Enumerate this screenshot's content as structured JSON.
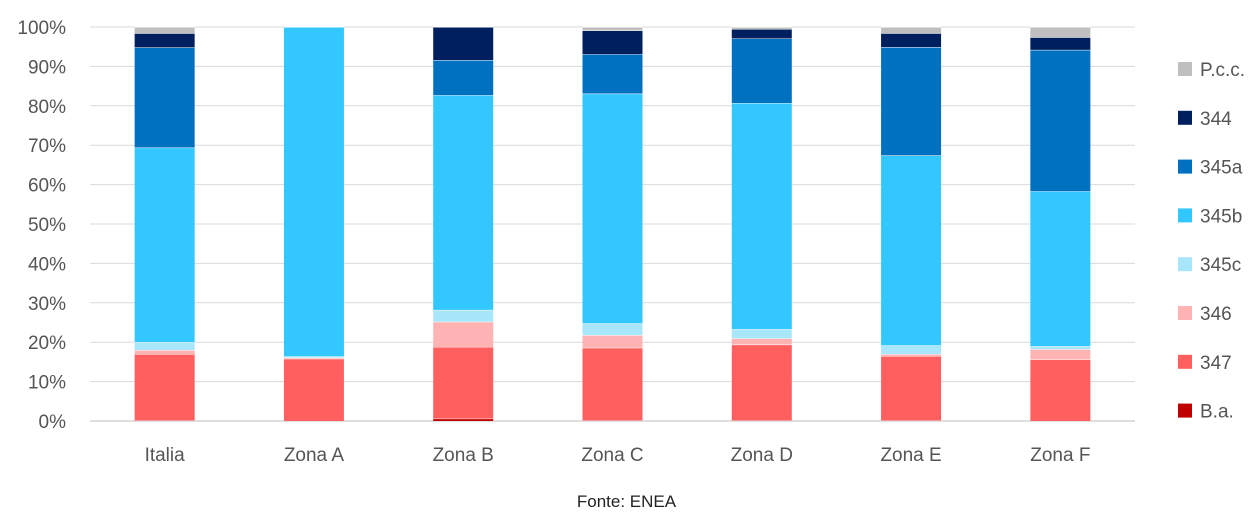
{
  "chart_data": {
    "type": "bar",
    "stacked": true,
    "categories": [
      "Italia",
      "Zona A",
      "Zona B",
      "Zona C",
      "Zona D",
      "Zona E",
      "Zona F"
    ],
    "ylim": [
      0,
      100
    ],
    "yticks": [
      "0%",
      "10%",
      "20%",
      "30%",
      "40%",
      "50%",
      "60%",
      "70%",
      "80%",
      "90%",
      "100%"
    ],
    "grid": true,
    "legend_position": "right",
    "series": [
      {
        "name": "B.a.",
        "color": "#c00000",
        "values": [
          0.2,
          0.0,
          0.6,
          0.2,
          0.2,
          0.2,
          0.0
        ]
      },
      {
        "name": "347",
        "color": "#ff5f5f",
        "values": [
          16.8,
          15.8,
          18.2,
          18.4,
          19.2,
          16.3,
          15.6
        ]
      },
      {
        "name": "346",
        "color": "#ffb3b3",
        "values": [
          1.0,
          0.3,
          6.4,
          3.2,
          1.6,
          0.5,
          2.6
        ]
      },
      {
        "name": "345c",
        "color": "#a8e6fc",
        "values": [
          2.0,
          0.3,
          3.0,
          3.0,
          2.3,
          2.2,
          0.8
        ]
      },
      {
        "name": "345b",
        "color": "#33c7ff",
        "values": [
          49.4,
          83.6,
          54.5,
          58.3,
          57.4,
          48.2,
          39.3
        ]
      },
      {
        "name": "345a",
        "color": "#0070c0",
        "values": [
          25.4,
          0.0,
          8.9,
          10.0,
          16.4,
          27.5,
          35.9
        ]
      },
      {
        "name": "344",
        "color": "#001f5f",
        "values": [
          3.6,
          0.0,
          8.4,
          6.0,
          2.4,
          3.5,
          3.2
        ]
      },
      {
        "name": "P.c.c.",
        "color": "#bfbfbf",
        "values": [
          1.6,
          0.0,
          0.0,
          0.9,
          0.5,
          1.6,
          2.6
        ]
      }
    ]
  },
  "source_note": "Fonte: ENEA"
}
